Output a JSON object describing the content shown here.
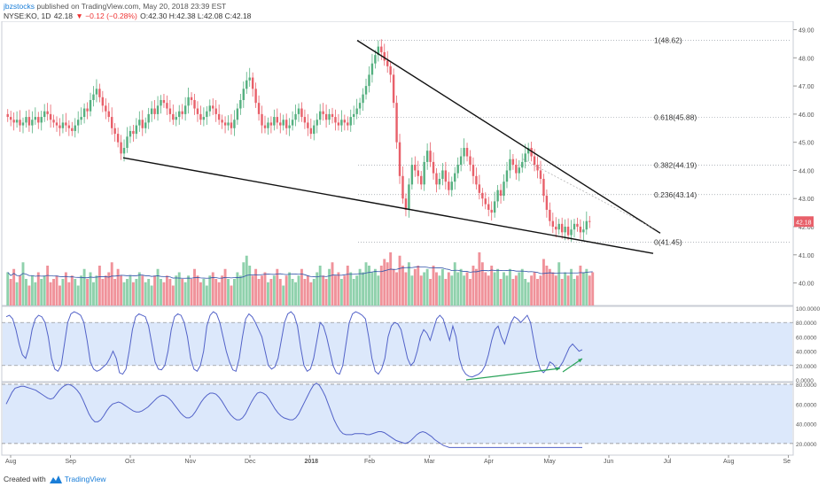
{
  "header": {
    "author": "jbzstocks",
    "published": "published on TradingView.com, May 20, 2018 23:39 EST",
    "symbol": "NYSE:KO, 1D",
    "last": "42.18",
    "change": "▼ −0.12 (−0.28%)",
    "ohlc": "O:42.30 H:42.38 L:42.08 C:42.18"
  },
  "footer": {
    "created_with": "Created with",
    "brand": "TradingView"
  },
  "colors": {
    "up": "#55b080",
    "down": "#e8606a",
    "vol_up": "#8fd1ac",
    "vol_down": "#f0929a",
    "osc_fill": "#dce8fb",
    "osc_line": "#5262c8",
    "arrow": "#2aa35a",
    "trend": "#111111"
  },
  "chart_data": {
    "type": "candlestick",
    "price_axis": {
      "labels": [
        "49.00",
        "48.00",
        "47.00",
        "46.00",
        "45.00",
        "44.00",
        "43.00",
        "42.00",
        "41.00",
        "40.00"
      ],
      "min": 39.2,
      "max": 49.3,
      "last_label": "42.18"
    },
    "time_axis": {
      "labels": [
        "Aug",
        "Sep",
        "Oct",
        "Nov",
        "Dec",
        "2018",
        "Feb",
        "Mar",
        "Apr",
        "May",
        "Jun",
        "Jul",
        "Aug",
        "Se"
      ]
    },
    "fib_levels": [
      {
        "label": "1(48.62)",
        "price": 48.62
      },
      {
        "label": "0.618(45.88)",
        "price": 45.88
      },
      {
        "label": "0.382(44.19)",
        "price": 44.19
      },
      {
        "label": "0.236(43.14)",
        "price": 43.14
      },
      {
        "label": "0(41.45)",
        "price": 41.45
      }
    ],
    "candles_close": [
      45.9,
      45.8,
      45.7,
      45.8,
      45.6,
      45.7,
      45.9,
      45.6,
      45.8,
      45.9,
      45.7,
      45.9,
      46.1,
      46.0,
      45.8,
      45.7,
      45.6,
      45.5,
      45.7,
      45.6,
      45.5,
      45.4,
      45.6,
      45.8,
      45.9,
      46.2,
      46.1,
      46.5,
      46.7,
      46.9,
      46.6,
      46.3,
      46.1,
      45.9,
      45.5,
      45.3,
      45.0,
      44.6,
      44.8,
      45.2,
      45.4,
      45.3,
      45.6,
      45.8,
      45.5,
      45.7,
      46.0,
      46.2,
      46.0,
      46.3,
      46.5,
      46.4,
      46.2,
      46.0,
      45.8,
      45.9,
      46.1,
      46.0,
      46.3,
      46.6,
      46.5,
      46.2,
      46.0,
      45.8,
      45.9,
      46.1,
      46.3,
      46.2,
      46.0,
      45.8,
      45.7,
      45.6,
      45.7,
      45.5,
      45.8,
      46.2,
      46.5,
      46.9,
      47.2,
      47.3,
      46.9,
      46.4,
      46.0,
      45.6,
      45.5,
      45.7,
      45.6,
      45.9,
      45.7,
      45.6,
      45.8,
      45.5,
      45.6,
      45.8,
      46.0,
      46.2,
      45.9,
      45.7,
      45.5,
      45.3,
      45.6,
      45.8,
      46.1,
      46.0,
      45.8,
      46.0,
      45.9,
      45.7,
      45.6,
      45.8,
      45.7,
      45.6,
      45.9,
      46.0,
      46.2,
      46.4,
      46.7,
      47.0,
      47.4,
      47.8,
      48.1,
      48.4,
      48.2,
      47.9,
      47.7,
      47.4,
      46.4,
      45.0,
      43.8,
      43.0,
      42.6,
      43.5,
      44.2,
      44.0,
      43.8,
      43.5,
      44.3,
      44.7,
      44.3,
      43.9,
      43.5,
      43.7,
      44.0,
      43.6,
      43.3,
      43.6,
      43.9,
      44.2,
      44.5,
      44.8,
      44.5,
      44.2,
      43.8,
      43.5,
      43.2,
      43.0,
      42.8,
      42.6,
      42.5,
      42.9,
      43.3,
      43.1,
      43.6,
      44.0,
      44.4,
      44.2,
      43.9,
      44.1,
      44.3,
      44.6,
      44.8,
      44.5,
      44.2,
      44.0,
      43.7,
      43.1,
      42.6,
      42.2,
      42.0,
      41.9,
      42.1,
      41.8,
      42.0,
      41.7,
      41.9,
      42.1,
      42.0,
      41.8,
      41.9,
      42.2,
      42.18
    ],
    "volume": [
      1.0,
      0.8,
      1.1,
      0.7,
      0.9,
      1.3,
      0.8,
      0.6,
      0.9,
      0.7,
      1.0,
      0.8,
      0.9,
      1.2,
      0.7,
      0.8,
      0.9,
      0.6,
      0.8,
      1.0,
      0.7,
      0.9,
      0.8,
      0.6,
      0.9,
      1.1,
      0.8,
      1.0,
      0.7,
      0.9,
      1.2,
      0.8,
      0.9,
      1.0,
      1.3,
      0.8,
      1.1,
      0.9,
      0.7,
      0.8,
      0.9,
      0.7,
      0.8,
      1.0,
      0.9,
      0.7,
      0.8,
      0.6,
      0.9,
      1.1,
      0.8,
      0.7,
      0.9,
      0.8,
      0.6,
      0.9,
      1.0,
      0.8,
      0.7,
      0.9,
      0.8,
      1.1,
      0.9,
      0.7,
      0.8,
      0.6,
      0.9,
      1.0,
      0.8,
      0.7,
      0.9,
      1.1,
      0.8,
      0.6,
      0.8,
      1.0,
      0.9,
      1.3,
      1.5,
      1.2,
      0.9,
      1.1,
      0.8,
      0.9,
      1.0,
      0.7,
      0.8,
      0.9,
      1.1,
      0.8,
      0.6,
      0.9,
      1.0,
      0.8,
      0.7,
      0.9,
      1.1,
      0.8,
      0.9,
      0.7,
      0.8,
      1.0,
      1.2,
      0.9,
      0.8,
      1.1,
      1.3,
      0.9,
      1.0,
      0.8,
      0.9,
      1.2,
      1.0,
      0.8,
      0.9,
      1.1,
      1.0,
      1.3,
      1.2,
      1.0,
      1.1,
      0.9,
      1.2,
      1.4,
      1.3,
      1.6,
      1.1,
      1.0,
      1.5,
      1.2,
      1.0,
      1.3,
      0.9,
      1.1,
      1.2,
      0.9,
      1.0,
      1.1,
      0.8,
      1.2,
      1.0,
      0.9,
      1.1,
      0.8,
      1.0,
      0.9,
      1.3,
      1.0,
      1.1,
      0.9,
      1.0,
      0.8,
      1.2,
      1.1,
      1.6,
      1.3,
      1.0,
      0.9,
      1.2,
      1.0,
      1.1,
      0.8,
      1.0,
      0.9,
      1.1,
      0.8,
      0.9,
      1.0,
      1.1,
      0.8,
      0.7,
      0.9,
      1.0,
      0.8,
      0.9,
      1.4,
      1.2,
      1.1,
      1.0,
      0.9,
      1.3,
      0.8,
      1.0,
      0.9,
      1.1,
      0.8,
      0.9,
      1.2,
      1.0,
      1.1,
      0.9,
      1.0
    ],
    "stoch_axis": {
      "labels": [
        "100.0000",
        "80.0000",
        "60.0000",
        "40.0000",
        "20.0000",
        "0.0000"
      ],
      "min": 0,
      "max": 100,
      "band": [
        20,
        80
      ]
    },
    "stoch": [
      88,
      90,
      85,
      70,
      50,
      35,
      30,
      45,
      70,
      85,
      90,
      88,
      80,
      60,
      30,
      15,
      12,
      20,
      50,
      80,
      92,
      95,
      93,
      90,
      80,
      55,
      25,
      15,
      12,
      14,
      18,
      22,
      30,
      40,
      30,
      10,
      8,
      15,
      40,
      70,
      88,
      92,
      90,
      88,
      75,
      50,
      25,
      15,
      14,
      20,
      40,
      70,
      88,
      92,
      90,
      80,
      60,
      30,
      15,
      12,
      20,
      40,
      75,
      90,
      95,
      92,
      80,
      60,
      40,
      25,
      14,
      12,
      30,
      60,
      85,
      92,
      88,
      80,
      70,
      60,
      40,
      20,
      15,
      18,
      30,
      55,
      80,
      92,
      95,
      90,
      75,
      45,
      20,
      12,
      15,
      30,
      55,
      80,
      75,
      60,
      40,
      20,
      10,
      8,
      20,
      50,
      80,
      92,
      95,
      93,
      90,
      85,
      60,
      30,
      12,
      8,
      15,
      30,
      60,
      75,
      80,
      78,
      70,
      50,
      30,
      20,
      25,
      40,
      60,
      70,
      65,
      55,
      70,
      85,
      90,
      85,
      70,
      55,
      75,
      60,
      30,
      15,
      8,
      5,
      4,
      6,
      8,
      12,
      20,
      35,
      55,
      70,
      75,
      60,
      50,
      65,
      80,
      88,
      85,
      80,
      85,
      90,
      80,
      55,
      30,
      15,
      10,
      15,
      25,
      22,
      15,
      18,
      25,
      35,
      45,
      50,
      45,
      40,
      42
    ],
    "stoch2_axis": {
      "labels": [
        "80.0000",
        "60.0000",
        "40.0000",
        "20.0000"
      ],
      "min": 10,
      "max": 80,
      "band": [
        20,
        80
      ]
    },
    "stoch2": [
      60,
      66,
      72,
      76,
      77,
      78,
      78,
      77,
      76,
      75,
      74,
      72,
      70,
      68,
      66,
      65,
      66,
      70,
      74,
      77,
      79,
      80,
      79,
      77,
      74,
      70,
      64,
      57,
      50,
      45,
      42,
      42,
      44,
      48,
      53,
      57,
      60,
      61,
      62,
      61,
      59,
      57,
      55,
      53,
      52,
      52,
      53,
      55,
      57,
      60,
      63,
      66,
      68,
      69,
      68,
      66,
      63,
      59,
      55,
      51,
      48,
      46,
      46,
      48,
      52,
      57,
      62,
      66,
      69,
      71,
      71,
      70,
      67,
      63,
      58,
      53,
      49,
      46,
      44,
      44,
      46,
      50,
      56,
      62,
      67,
      71,
      72,
      71,
      69,
      65,
      60,
      55,
      51,
      48,
      46,
      45,
      44,
      44,
      46,
      50,
      56,
      62,
      68,
      74,
      79,
      81,
      79,
      74,
      68,
      60,
      52,
      44,
      38,
      33,
      30,
      29,
      29,
      29,
      30,
      30,
      30,
      30,
      29,
      29,
      30,
      31,
      32,
      32,
      31,
      29,
      27,
      25,
      23,
      22,
      21,
      20,
      21,
      23,
      26,
      29,
      31,
      32,
      31,
      29,
      27,
      24,
      22,
      20,
      18,
      17,
      16,
      16,
      16,
      16,
      16,
      16,
      16,
      16,
      16,
      16,
      16,
      16,
      16,
      16,
      16,
      16,
      16,
      16,
      16,
      16,
      16,
      16,
      16,
      16,
      16,
      16,
      16,
      16,
      16,
      16,
      16,
      16,
      16,
      16,
      16,
      16,
      16,
      16,
      16,
      16,
      16,
      16,
      16,
      16,
      16,
      16
    ]
  }
}
